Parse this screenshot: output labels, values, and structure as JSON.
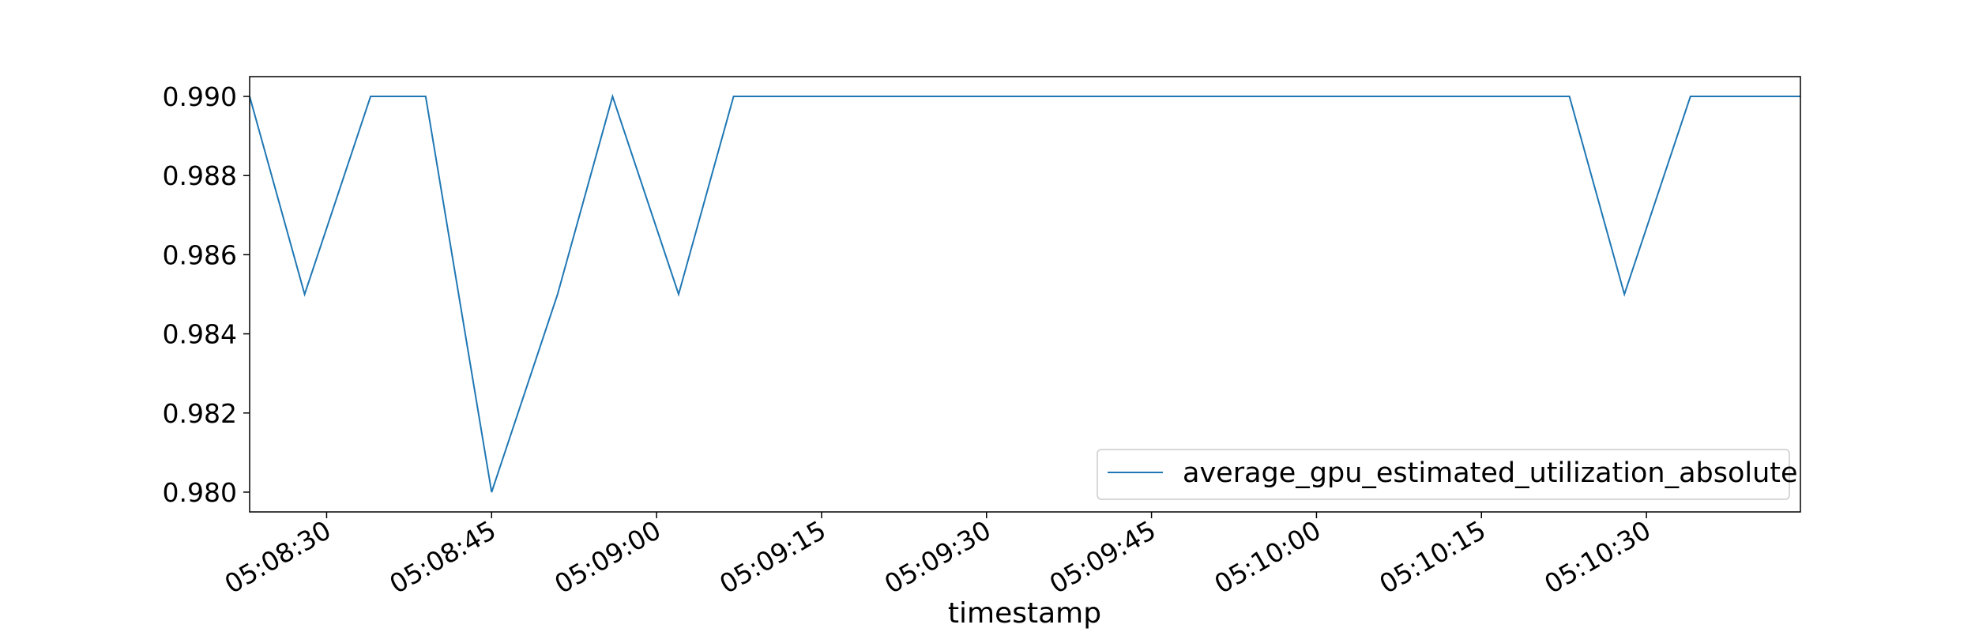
{
  "chart_data": {
    "type": "line",
    "title": "",
    "xlabel": "timestamp",
    "ylabel": "",
    "x": [
      "05:08:23",
      "05:08:28",
      "05:08:34",
      "05:08:39",
      "05:08:45",
      "05:08:51",
      "05:08:56",
      "05:09:02",
      "05:09:07",
      "05:09:13",
      "05:09:18",
      "05:09:24",
      "05:09:29",
      "05:09:34",
      "05:09:40",
      "05:09:45",
      "05:09:51",
      "05:09:56",
      "05:10:01",
      "05:10:07",
      "05:10:12",
      "05:10:18",
      "05:10:23",
      "05:10:28",
      "05:10:34",
      "05:10:39",
      "05:10:44"
    ],
    "series": [
      {
        "name": "average_gpu_estimated_utilization_absolute",
        "color": "#1f77b4",
        "values": [
          0.99,
          0.985,
          0.99,
          0.99,
          0.98,
          0.985,
          0.99,
          0.985,
          0.99,
          0.99,
          0.99,
          0.99,
          0.99,
          0.99,
          0.99,
          0.99,
          0.99,
          0.99,
          0.99,
          0.99,
          0.99,
          0.99,
          0.99,
          0.985,
          0.99,
          0.99,
          0.99
        ]
      }
    ],
    "xlim": [
      "05:08:23",
      "05:10:44"
    ],
    "ylim": [
      0.9795,
      0.9905
    ],
    "xticks": [
      "05:08:30",
      "05:08:45",
      "05:09:00",
      "05:09:15",
      "05:09:30",
      "05:09:45",
      "05:10:00",
      "05:10:15",
      "05:10:30"
    ],
    "yticks": [
      0.98,
      0.982,
      0.984,
      0.986,
      0.988,
      0.99
    ],
    "ytick_labels": [
      "0.980",
      "0.982",
      "0.984",
      "0.986",
      "0.988",
      "0.990"
    ],
    "grid": false,
    "legend": {
      "position": "bottom-right",
      "entries": [
        "average_gpu_estimated_utilization_absolute"
      ]
    }
  }
}
